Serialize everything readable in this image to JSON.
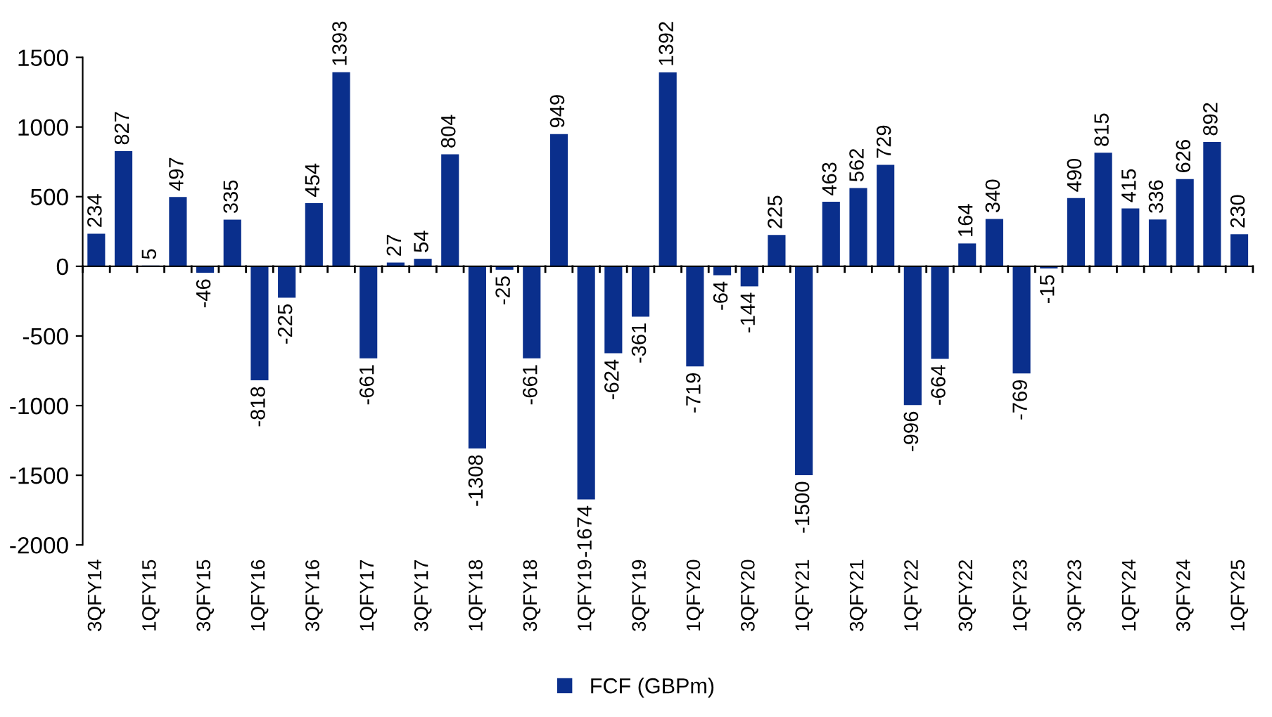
{
  "chart_data": {
    "type": "bar",
    "categories": [
      "3QFY14",
      null,
      "1QFY15",
      null,
      "3QFY15",
      null,
      "1QFY16",
      null,
      "3QFY16",
      null,
      "1QFY17",
      null,
      "3QFY17",
      null,
      "1QFY18",
      null,
      "3QFY18",
      null,
      "1QFY19",
      null,
      "3QFY19",
      null,
      "1QFY20",
      null,
      "3QFY20",
      null,
      "1QFY21",
      null,
      "3QFY21",
      null,
      "1QFY22",
      null,
      "3QFY22",
      null,
      "1QFY23",
      null,
      "3QFY23",
      null,
      "1QFY24",
      null,
      "3QFY24",
      null,
      "1QFY25"
    ],
    "series": [
      {
        "name": "FCF (GBPm)",
        "color": "#0a2f8c",
        "values": [
          234,
          827,
          5,
          497,
          -46,
          335,
          -818,
          -225,
          454,
          1393,
          -661,
          27,
          54,
          804,
          -1308,
          -25,
          -661,
          949,
          -1674,
          -624,
          -361,
          1392,
          -719,
          -64,
          -144,
          225,
          -1500,
          463,
          562,
          729,
          -996,
          -664,
          164,
          340,
          -769,
          -15,
          490,
          815,
          415,
          336,
          626,
          892,
          230
        ]
      }
    ],
    "ylim": [
      -2000,
      1500
    ],
    "yticks": [
      -2000,
      -1500,
      -1000,
      -500,
      0,
      500,
      1000,
      1500
    ],
    "data_labels": true,
    "legend": "bottom"
  }
}
